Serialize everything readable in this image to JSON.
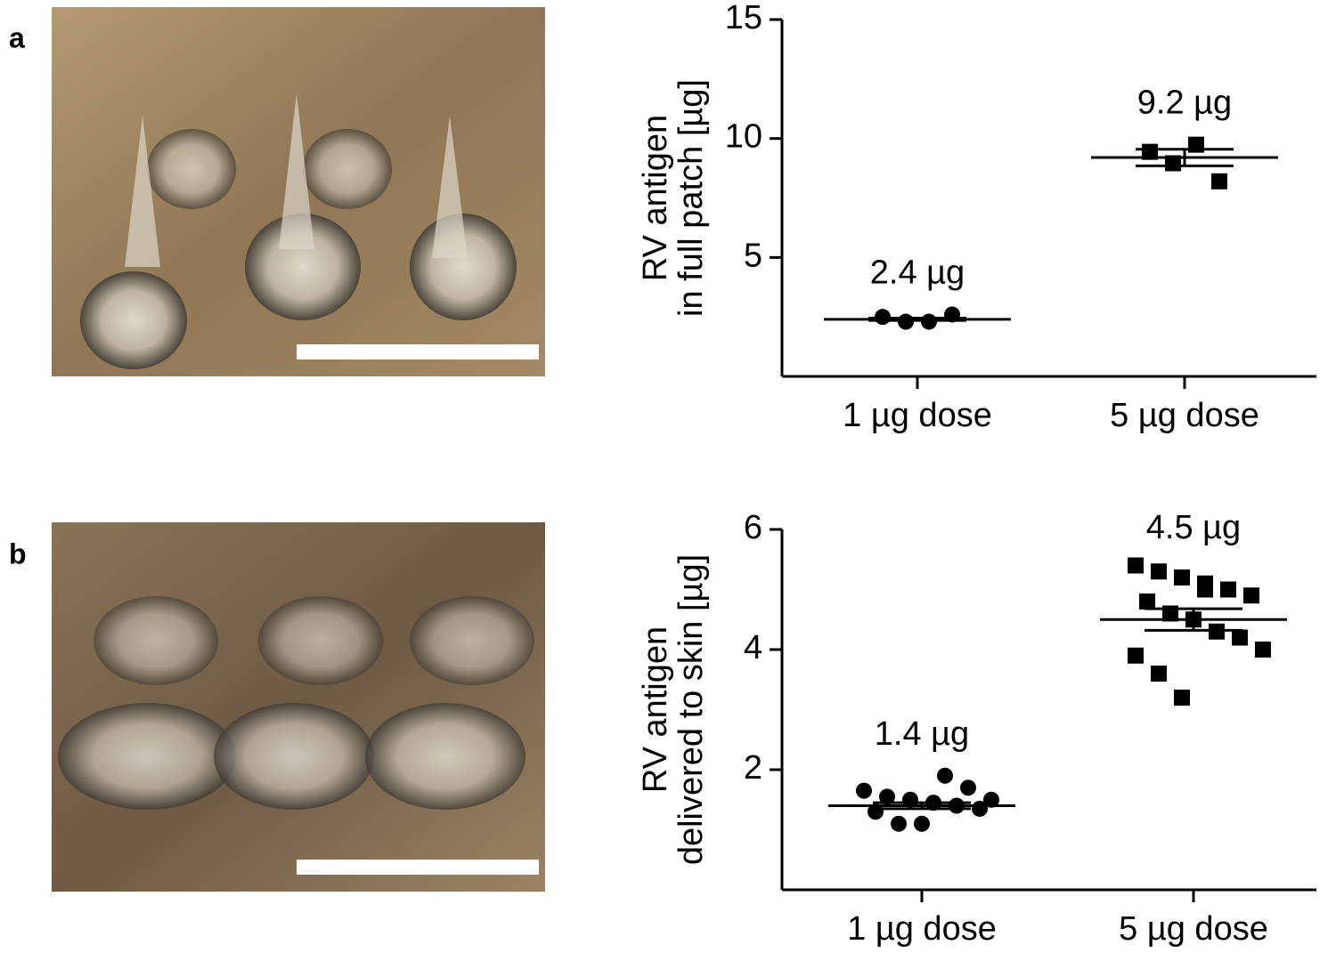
{
  "chart_data": [
    {
      "type": "dotplot",
      "panel": "a",
      "ylabel": [
        "RV antigen",
        "in full patch [µg]"
      ],
      "categories": [
        "1 µg dose",
        "5 µg dose"
      ],
      "markers": [
        "circle",
        "square"
      ],
      "color": "#000000",
      "points": [
        [
          2.5,
          2.3,
          2.3,
          2.6
        ],
        [
          9.44,
          8.96,
          9.74,
          8.2
        ]
      ],
      "values": [
        2.4,
        9.2
      ],
      "value_labels": [
        "2.4 µg",
        "9.2 µg"
      ],
      "errors": [
        0.05,
        0.35
      ],
      "ylim": [
        0,
        15
      ],
      "yticks": [
        5,
        10,
        15
      ]
    },
    {
      "type": "dotplot",
      "panel": "b",
      "ylabel": [
        "RV antigen",
        "delivered to skin [µg]"
      ],
      "categories": [
        "1 µg dose",
        "5 µg dose"
      ],
      "markers": [
        "circle",
        "square"
      ],
      "color": "#000000",
      "points": [
        [
          1.65,
          1.55,
          1.5,
          1.45,
          1.4,
          1.35,
          1.3,
          1.1,
          1.1,
          1.9,
          1.7,
          1.5
        ],
        [
          5.4,
          5.3,
          5.2,
          5.0,
          5.0,
          4.9,
          4.8,
          4.6,
          4.5,
          4.3,
          4.2,
          4.0,
          3.9,
          3.6,
          3.2,
          5.1
        ]
      ],
      "values": [
        1.4,
        4.5
      ],
      "value_labels": [
        "1.4 µg",
        "4.5 µg"
      ],
      "errors": [
        0.05,
        0.18
      ],
      "ylim": [
        0,
        6
      ],
      "yticks": [
        2,
        4,
        6
      ]
    }
  ]
}
